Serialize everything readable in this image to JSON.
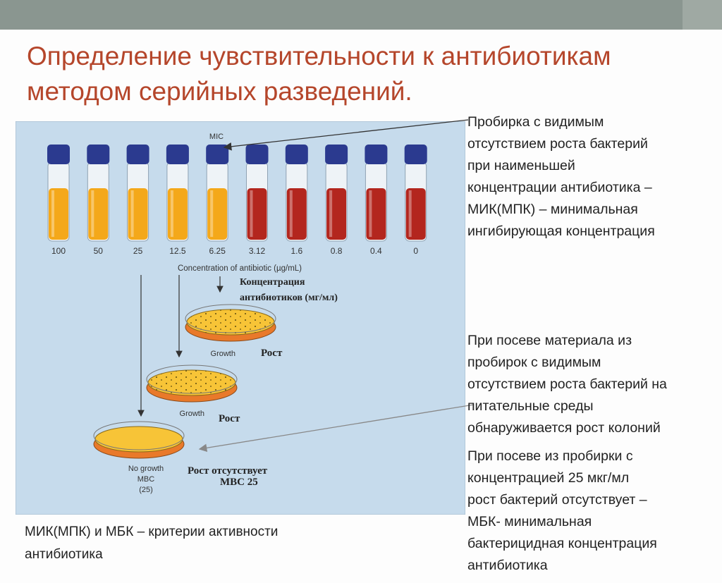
{
  "slide": {
    "title": "Определение чувствительности к антибиотикам методом серийных разведений.",
    "mic_description": "Пробирка с видимым\nотсутствием роста  бактерий\nпри наименьшей\nконцентрации антибиотика –\nМИК(МПК) – минимальная\nингибирующая концентрация",
    "subculture_description": "При посеве материала из\nпробирок с видимым\nотсутствием роста бактерий на\nпитательные среды\nобнаруживается рост колоний",
    "mbc_description": "При посеве из пробирки с\nконцентрацией 25 мкг/мл\nрост бактерий отсутствует –\nМБК- минимальная\nбактерицидная концентрация\nантибиотика",
    "criteria_note": "МИК(МПК) и МБК – критерии активности\nантибиотика"
  },
  "figure": {
    "mic_label": "MIC",
    "axis_label": "Concentration of antibiotic (µg/mL)",
    "axis_label_ru_line1": "Концентрация",
    "axis_label_ru_line2": "антибиотиков (мг/мл)",
    "tubes": [
      {
        "concentration": "100",
        "growth": false
      },
      {
        "concentration": "50",
        "growth": false
      },
      {
        "concentration": "25",
        "growth": false
      },
      {
        "concentration": "12.5",
        "growth": false
      },
      {
        "concentration": "6.25",
        "growth": false
      },
      {
        "concentration": "3.12",
        "growth": true
      },
      {
        "concentration": "1.6",
        "growth": true
      },
      {
        "concentration": "0.8",
        "growth": true
      },
      {
        "concentration": "0.4",
        "growth": true
      },
      {
        "concentration": "0",
        "growth": true
      }
    ],
    "plates": [
      {
        "label_en": "Growth",
        "label_ru": "Рост"
      },
      {
        "label_en": "Growth",
        "label_ru": "Рост"
      },
      {
        "label_en": "No growth",
        "label_en_2": "MBC",
        "label_en_3": "(25)",
        "label_ru": "Рост отсутствует",
        "label_ru_2": "MBC 25"
      }
    ],
    "colors": {
      "clear_tube": "#f4a81a",
      "turbid_tube": "#b3261e",
      "cap": "#2b3a8f",
      "background": "#c6dbec"
    }
  }
}
